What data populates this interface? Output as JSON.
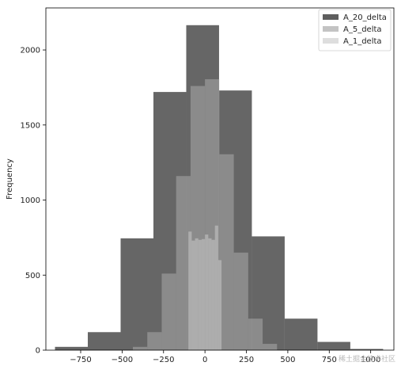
{
  "chart_data": {
    "type": "histogram",
    "title": "",
    "xlabel": "",
    "ylabel": "Frequency",
    "xlim": [
      -960,
      1140
    ],
    "ylim": [
      0,
      2280
    ],
    "xticks": [
      -750,
      -500,
      -250,
      0,
      250,
      500,
      750,
      1000
    ],
    "xtick_labels": [
      "−750",
      "−500",
      "−250",
      "0",
      "250",
      "500",
      "750",
      "1000"
    ],
    "yticks": [
      0,
      500,
      1000,
      1500,
      2000
    ],
    "ytick_labels": [
      "0",
      "500",
      "1000",
      "1500",
      "2000"
    ],
    "grid": false,
    "legend_position": "top-right",
    "series": [
      {
        "name": "A_20_delta",
        "color": "#555555",
        "opacity": 0.9,
        "bins": [
          {
            "x0": -905,
            "x1": -707,
            "count": 22
          },
          {
            "x0": -707,
            "x1": -509,
            "count": 120
          },
          {
            "x0": -509,
            "x1": -311,
            "count": 745
          },
          {
            "x0": -311,
            "x1": -113,
            "count": 1720
          },
          {
            "x0": -113,
            "x1": 85,
            "count": 2165
          },
          {
            "x0": 85,
            "x1": 283,
            "count": 1730
          },
          {
            "x0": 283,
            "x1": 481,
            "count": 758
          },
          {
            "x0": 481,
            "x1": 679,
            "count": 210
          },
          {
            "x0": 679,
            "x1": 877,
            "count": 55
          },
          {
            "x0": 877,
            "x1": 1075,
            "count": 8
          }
        ]
      },
      {
        "name": "A_5_delta",
        "color": "#b8b8b8",
        "opacity": 0.45,
        "bins": [
          {
            "x0": -435,
            "x1": -348,
            "count": 22
          },
          {
            "x0": -348,
            "x1": -261,
            "count": 120
          },
          {
            "x0": -261,
            "x1": -174,
            "count": 510
          },
          {
            "x0": -174,
            "x1": -87,
            "count": 1160
          },
          {
            "x0": -87,
            "x1": 0,
            "count": 1760
          },
          {
            "x0": 0,
            "x1": 87,
            "count": 1805
          },
          {
            "x0": 87,
            "x1": 174,
            "count": 1305
          },
          {
            "x0": 174,
            "x1": 261,
            "count": 650
          },
          {
            "x0": 261,
            "x1": 348,
            "count": 210
          },
          {
            "x0": 348,
            "x1": 435,
            "count": 42
          }
        ]
      },
      {
        "name": "A_1_delta",
        "color": "#d8d8d8",
        "opacity": 0.45,
        "bins": [
          {
            "x0": -100,
            "x1": -80,
            "count": 790
          },
          {
            "x0": -80,
            "x1": -60,
            "count": 730
          },
          {
            "x0": -60,
            "x1": -40,
            "count": 745
          },
          {
            "x0": -40,
            "x1": -20,
            "count": 735
          },
          {
            "x0": -20,
            "x1": 0,
            "count": 740
          },
          {
            "x0": 0,
            "x1": 20,
            "count": 770
          },
          {
            "x0": 20,
            "x1": 40,
            "count": 745
          },
          {
            "x0": 40,
            "x1": 60,
            "count": 735
          },
          {
            "x0": 60,
            "x1": 80,
            "count": 830
          },
          {
            "x0": 80,
            "x1": 100,
            "count": 600
          }
        ]
      }
    ]
  },
  "watermark": "稀土掘金技术社区"
}
